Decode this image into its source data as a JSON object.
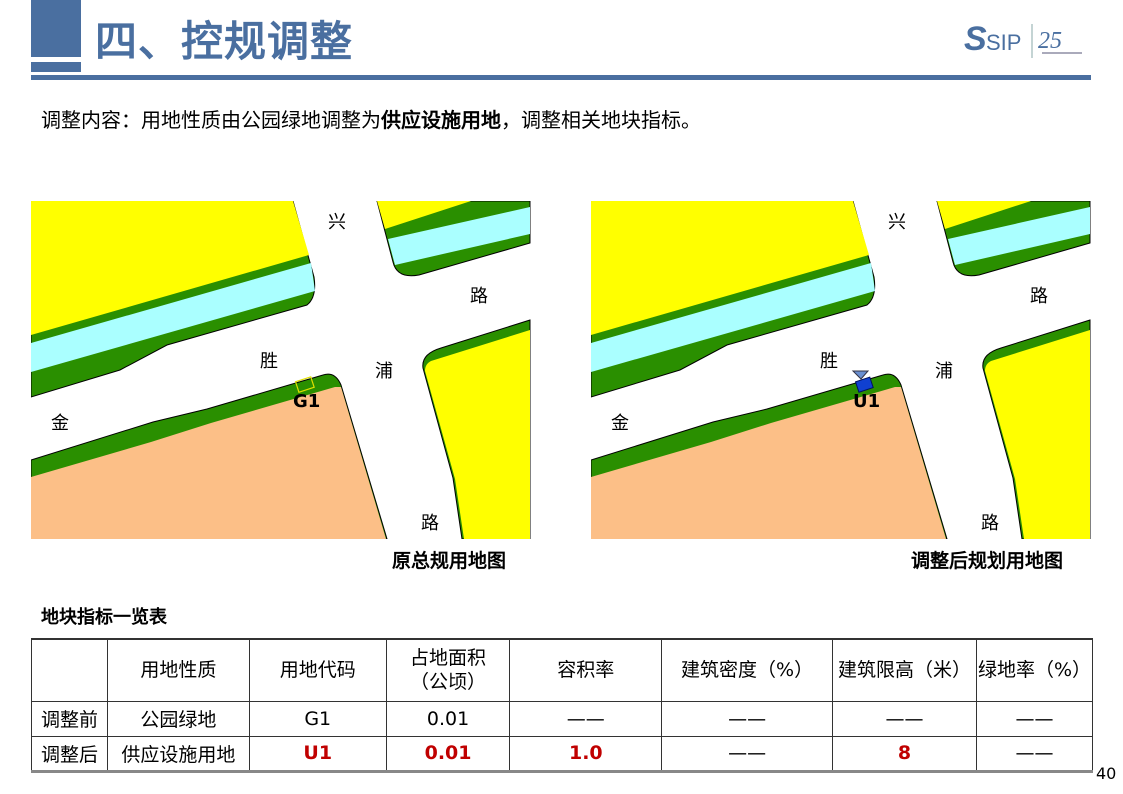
{
  "header": {
    "title": "四、控规调整",
    "logo_text": "SIP",
    "logo_mark": "25"
  },
  "intro": {
    "prefix": "调整内容：用地性质由公园绿地调整为",
    "highlight": "供应设施用地",
    "suffix": "，调整相关地块指标。"
  },
  "maps": [
    {
      "caption": "原总规用地图",
      "plot_code": "G1",
      "roads": {
        "xing": "兴",
        "lu1": "路",
        "sheng": "胜",
        "pu": "浦",
        "jin": "金",
        "lu2": "路"
      }
    },
    {
      "caption": "调整后规划用地图",
      "plot_code": "U1",
      "roads": {
        "xing": "兴",
        "lu1": "路",
        "sheng": "胜",
        "pu": "浦",
        "jin": "金",
        "lu2": "路"
      }
    }
  ],
  "colors": {
    "title": "#4a6fa0",
    "residential": "#ffff00",
    "green": "#2a8f00",
    "water": "#aaffff",
    "industrial": "#fcbf87",
    "utility": "#1040d0",
    "highlight": "#c00000"
  },
  "table": {
    "title": "地块指标一览表",
    "headers": [
      "",
      "用地性质",
      "用地代码",
      "占地面积\n（公顷）",
      "容积率",
      "建筑密度（%）",
      "建筑限高（米）",
      "绿地率（%）"
    ],
    "header_area_l1": "占地面积",
    "header_area_l2": "（公顷）",
    "rows": [
      {
        "label": "调整前",
        "cells": [
          "公园绿地",
          "G1",
          "0.01",
          "——",
          "——",
          "——",
          "——"
        ]
      },
      {
        "label": "调整后",
        "cells": [
          "供应设施用地",
          "U1",
          "0.01",
          "1.0",
          "——",
          "8",
          "——"
        ]
      }
    ]
  },
  "page_number": "40"
}
